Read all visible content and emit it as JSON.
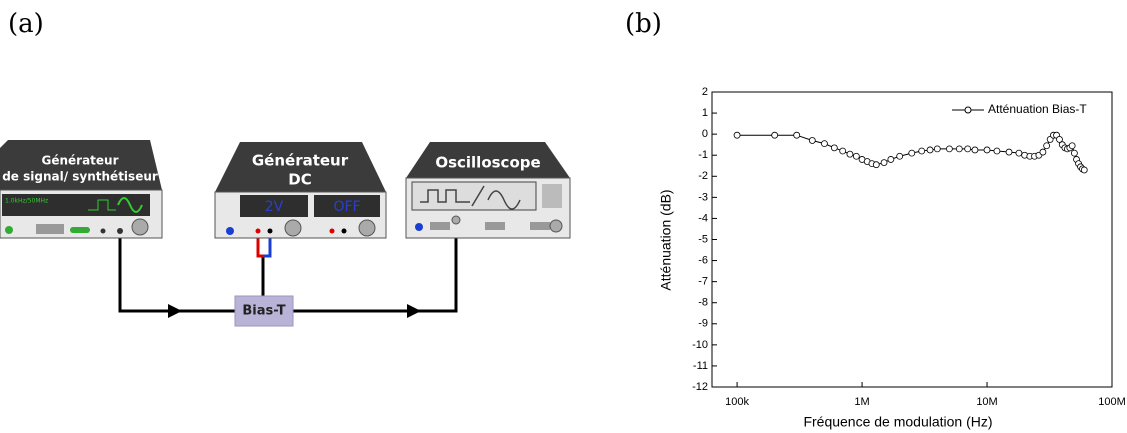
{
  "panels": {
    "a": "(a)",
    "b": "(b)"
  },
  "diagram": {
    "instruments": [
      {
        "label_lines": [
          "Générateur",
          "de signal/ synthétiseur"
        ],
        "display": "1.0kHz/50MHz"
      },
      {
        "label_lines": [
          "Générateur",
          "DC"
        ],
        "displays": [
          "2V",
          "OFF"
        ]
      },
      {
        "label_lines": [
          "Oscilloscope"
        ]
      }
    ],
    "bias_t": "Bias-T"
  },
  "chart_data": {
    "type": "line",
    "xlabel": "Fréquence de modulation (Hz)",
    "ylabel": "Atténuation (dB)",
    "log_x": true,
    "xlim": [
      63000,
      100000000
    ],
    "xticks": [
      {
        "value": 100000,
        "label": "100k"
      },
      {
        "value": 1000000,
        "label": "1M"
      },
      {
        "value": 10000000,
        "label": "10M"
      },
      {
        "value": 100000000,
        "label": "100M"
      }
    ],
    "ylim": [
      -12,
      2
    ],
    "yticks": [
      -12,
      -11,
      -10,
      -9,
      -8,
      -7,
      -6,
      -5,
      -4,
      -3,
      -2,
      -1,
      0,
      1,
      2
    ],
    "legend": "upper right",
    "x": [
      100000,
      200000,
      300000,
      400000,
      500000,
      600000,
      700000,
      800000,
      900000,
      1000000,
      1100000,
      1200000,
      1300000,
      1500000,
      1700000,
      2000000,
      2500000,
      3000000,
      3500000,
      4000000,
      5000000,
      6000000,
      7000000,
      8000000,
      10000000,
      12000000,
      15000000,
      18000000,
      20000000,
      22000000,
      24000000,
      26000000,
      28000000,
      30000000,
      32000000,
      34000000,
      36000000,
      38000000,
      40000000,
      42000000,
      44000000,
      46000000,
      48000000,
      50000000,
      52000000,
      54000000,
      56000000,
      58000000,
      60000000
    ],
    "series": [
      {
        "name": "Atténuation Bias-T",
        "color": "#000000",
        "values": [
          -0.05,
          -0.05,
          -0.05,
          -0.3,
          -0.45,
          -0.65,
          -0.8,
          -0.95,
          -1.05,
          -1.2,
          -1.3,
          -1.4,
          -1.45,
          -1.35,
          -1.2,
          -1.05,
          -0.9,
          -0.8,
          -0.75,
          -0.7,
          -0.7,
          -0.7,
          -0.7,
          -0.75,
          -0.75,
          -0.8,
          -0.85,
          -0.9,
          -1.0,
          -1.05,
          -1.05,
          -1.0,
          -0.85,
          -0.55,
          -0.25,
          -0.05,
          -0.05,
          -0.25,
          -0.5,
          -0.65,
          -0.7,
          -0.65,
          -0.55,
          -0.9,
          -1.2,
          -1.4,
          -1.55,
          -1.65,
          -1.7
        ]
      }
    ]
  }
}
